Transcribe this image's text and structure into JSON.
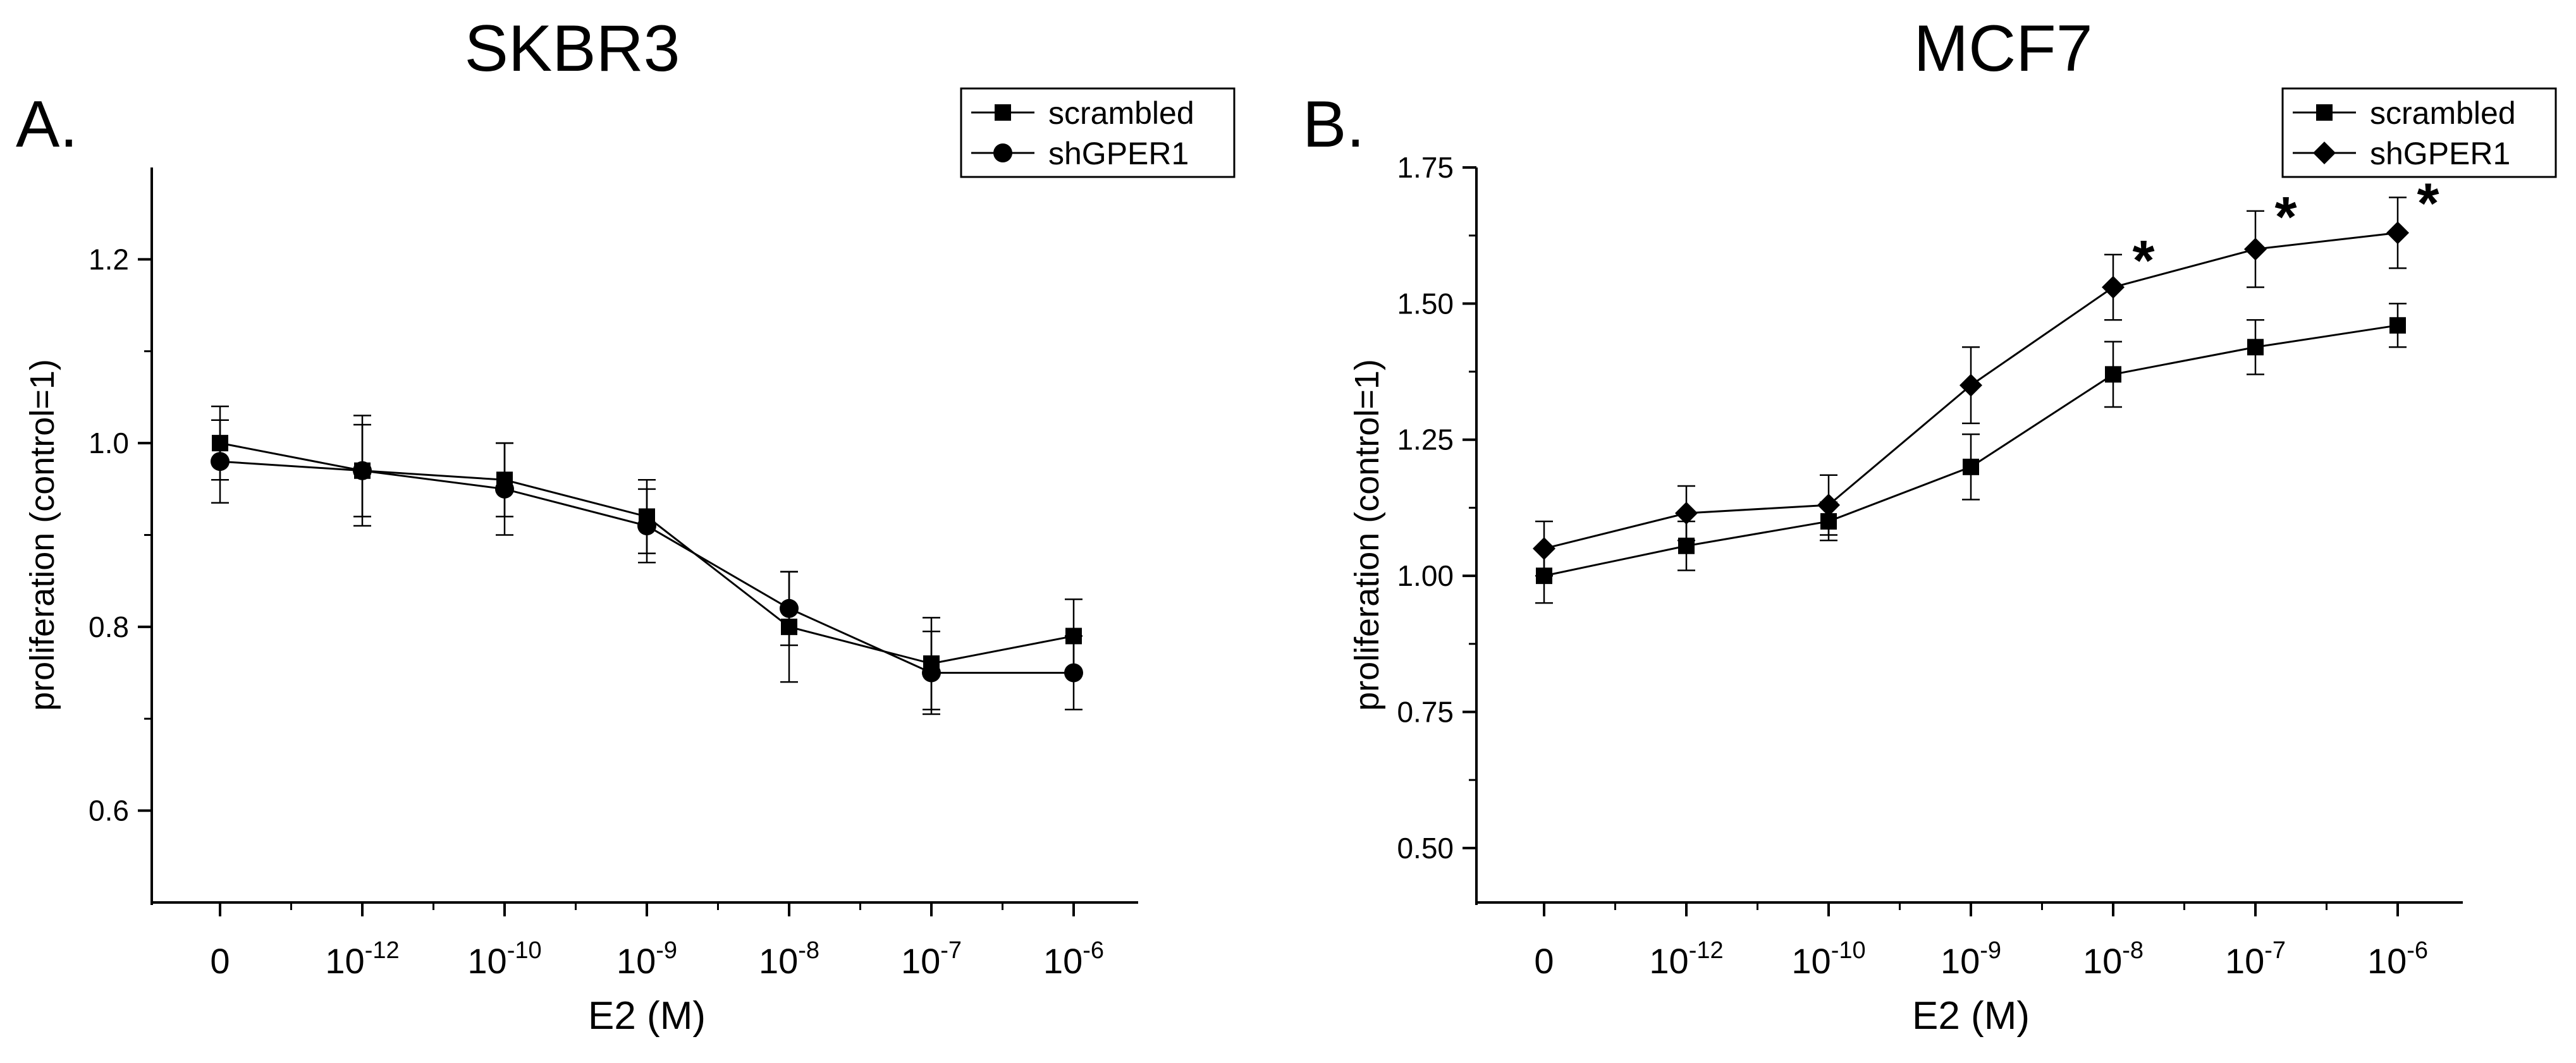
{
  "chart_data": [
    {
      "type": "line",
      "panel_label": "A.",
      "title": "SKBR3",
      "xlabel": "E2 (M)",
      "ylabel": "proliferation (control=1)",
      "ylim": [
        0.5,
        1.3
      ],
      "yticks": [
        {
          "value": 0.6,
          "label": "0.6"
        },
        {
          "value": 0.8,
          "label": "0.8"
        },
        {
          "value": 1.0,
          "label": "1.0"
        },
        {
          "value": 1.2,
          "label": "1.2"
        }
      ],
      "categories": [
        {
          "base": "0",
          "exp": ""
        },
        {
          "base": "10",
          "exp": "-12"
        },
        {
          "base": "10",
          "exp": "-10"
        },
        {
          "base": "10",
          "exp": "-9"
        },
        {
          "base": "10",
          "exp": "-8"
        },
        {
          "base": "10",
          "exp": "-7"
        },
        {
          "base": "10",
          "exp": "-6"
        }
      ],
      "legend_position": "top-right",
      "series": [
        {
          "name": "scrambled",
          "marker": "square",
          "values": [
            1.0,
            0.97,
            0.96,
            0.92,
            0.8,
            0.76,
            0.79
          ],
          "errors": [
            0.04,
            0.06,
            0.04,
            0.04,
            0.06,
            0.05,
            0.04
          ]
        },
        {
          "name": "shGPER1",
          "marker": "circle",
          "values": [
            0.98,
            0.97,
            0.95,
            0.91,
            0.82,
            0.75,
            0.75
          ],
          "errors": [
            0.045,
            0.05,
            0.05,
            0.04,
            0.04,
            0.045,
            0.04
          ]
        }
      ],
      "annotations": []
    },
    {
      "type": "line",
      "panel_label": "B.",
      "title": "MCF7",
      "xlabel": "E2 (M)",
      "ylabel": "proliferation (control=1)",
      "ylim": [
        0.4,
        1.75
      ],
      "yticks": [
        {
          "value": 0.5,
          "label": "0.50"
        },
        {
          "value": 0.75,
          "label": "0.75"
        },
        {
          "value": 1.0,
          "label": "1.00"
        },
        {
          "value": 1.25,
          "label": "1.25"
        },
        {
          "value": 1.5,
          "label": "1.50"
        },
        {
          "value": 1.75,
          "label": "1.75"
        }
      ],
      "categories": [
        {
          "base": "0",
          "exp": ""
        },
        {
          "base": "10",
          "exp": "-12"
        },
        {
          "base": "10",
          "exp": "-10"
        },
        {
          "base": "10",
          "exp": "-9"
        },
        {
          "base": "10",
          "exp": "-8"
        },
        {
          "base": "10",
          "exp": "-7"
        },
        {
          "base": "10",
          "exp": "-6"
        }
      ],
      "legend_position": "top-right",
      "series": [
        {
          "name": "scrambled",
          "marker": "square",
          "values": [
            1.0,
            1.055,
            1.1,
            1.2,
            1.37,
            1.42,
            1.46
          ],
          "errors": [
            0.05,
            0.045,
            0.035,
            0.06,
            0.06,
            0.05,
            0.04
          ]
        },
        {
          "name": "shGPER1",
          "marker": "diamond",
          "values": [
            1.05,
            1.115,
            1.13,
            1.35,
            1.53,
            1.6,
            1.63
          ],
          "errors": [
            0.05,
            0.05,
            0.055,
            0.07,
            0.06,
            0.07,
            0.065
          ]
        }
      ],
      "annotations": [
        {
          "text": "*",
          "category_index": 4,
          "value": 1.59
        },
        {
          "text": "*",
          "category_index": 5,
          "value": 1.67
        },
        {
          "text": "*",
          "category_index": 6,
          "value": 1.695
        }
      ]
    }
  ]
}
